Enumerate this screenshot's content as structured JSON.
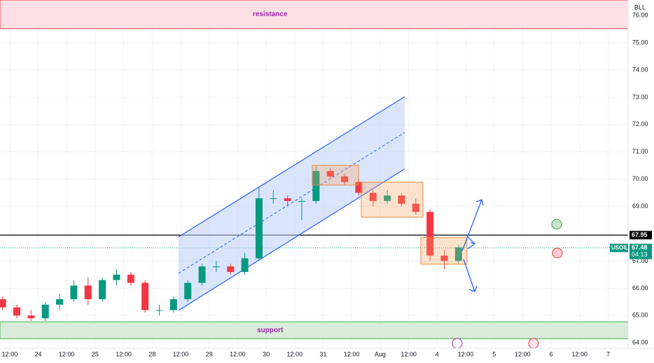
{
  "chart_data": {
    "type": "candlestick",
    "x": [
      -0.25,
      0.25,
      0.75,
      1.25,
      1.75,
      2.25,
      2.75,
      3.25,
      3.75,
      4.25,
      4.75,
      5.25,
      5.75,
      6.25,
      6.75,
      7.25,
      7.75,
      8.25,
      8.75,
      9.25,
      9.75,
      10.25,
      10.75,
      11.25,
      11.75,
      12.25,
      12.75,
      13.25,
      13.75,
      14.25,
      14.75,
      15.25,
      15.75
    ],
    "open": [
      65.6,
      65.3,
      65.0,
      64.9,
      65.4,
      65.6,
      66.1,
      65.6,
      66.3,
      66.5,
      66.2,
      65.2,
      65.2,
      65.6,
      66.2,
      66.8,
      66.8,
      66.6,
      67.1,
      69.3,
      69.3,
      69.2,
      69.2,
      70.3,
      70.1,
      69.9,
      69.5,
      69.2,
      69.4,
      69.1,
      68.8,
      67.2,
      67.0
    ],
    "high": [
      65.7,
      65.4,
      65.2,
      65.5,
      65.8,
      66.3,
      66.4,
      66.4,
      66.7,
      66.6,
      66.3,
      65.4,
      65.7,
      66.3,
      66.9,
      67.0,
      66.9,
      67.3,
      69.7,
      69.6,
      69.4,
      69.3,
      70.5,
      70.4,
      70.2,
      70.0,
      69.6,
      69.6,
      69.5,
      69.3,
      68.9,
      67.4,
      67.6
    ],
    "low": [
      65.2,
      64.9,
      64.8,
      64.8,
      65.2,
      65.5,
      65.4,
      65.5,
      66.1,
      66.1,
      65.1,
      65.0,
      65.1,
      65.5,
      66.1,
      66.6,
      66.5,
      66.5,
      67.0,
      69.1,
      69.0,
      68.5,
      69.1,
      70.0,
      69.8,
      69.4,
      69.0,
      69.1,
      69.0,
      68.7,
      67.0,
      66.7,
      66.9
    ],
    "close": [
      65.3,
      65.0,
      64.9,
      65.4,
      65.6,
      66.1,
      65.6,
      66.3,
      66.5,
      66.2,
      65.2,
      65.2,
      65.6,
      66.2,
      66.8,
      66.8,
      66.6,
      67.1,
      69.3,
      69.3,
      69.2,
      69.2,
      70.3,
      70.1,
      69.9,
      69.5,
      69.2,
      69.4,
      69.1,
      68.8,
      67.2,
      67.0,
      67.5
    ],
    "up_color": "#089981",
    "down_color": "#f23645",
    "xlim": [
      -0.34,
      21.7
    ],
    "xticks": [
      {
        "value": 0,
        "label": "12:00"
      },
      {
        "value": 1,
        "label": "24"
      },
      {
        "value": 2,
        "label": "12:00"
      },
      {
        "value": 3,
        "label": "25"
      },
      {
        "value": 4,
        "label": "12:00"
      },
      {
        "value": 5,
        "label": "28"
      },
      {
        "value": 6,
        "label": "12:00"
      },
      {
        "value": 7,
        "label": "29"
      },
      {
        "value": 8,
        "label": "12:00"
      },
      {
        "value": 9,
        "label": "30"
      },
      {
        "value": 10,
        "label": "12:00"
      },
      {
        "value": 11,
        "label": "31"
      },
      {
        "value": 12,
        "label": "12:00"
      },
      {
        "value": 13,
        "label": "Aug"
      },
      {
        "value": 14,
        "label": "12:00"
      },
      {
        "value": 15,
        "label": "4"
      },
      {
        "value": 16,
        "label": "12:00"
      },
      {
        "value": 17,
        "label": "5"
      },
      {
        "value": 18,
        "label": "12:00"
      },
      {
        "value": 19,
        "label": "6"
      },
      {
        "value": 20,
        "label": "12:00"
      },
      {
        "value": 21,
        "label": "7"
      }
    ],
    "ylim": [
      63.8,
      76.57
    ],
    "yticks": [
      {
        "value": 64,
        "label": "64.00"
      },
      {
        "value": 65,
        "label": "65.00"
      },
      {
        "value": 66,
        "label": "66.00"
      },
      {
        "value": 67,
        "label": "67.00"
      },
      {
        "value": 68,
        "label": "68.00"
      },
      {
        "value": 69,
        "label": "69.00"
      },
      {
        "value": 70,
        "label": "70.00"
      },
      {
        "value": 71,
        "label": "71.00"
      },
      {
        "value": 72,
        "label": "72.00"
      },
      {
        "value": 73,
        "label": "73.00"
      },
      {
        "value": 74,
        "label": "74.00"
      },
      {
        "value": 75,
        "label": "75.00"
      },
      {
        "value": 76,
        "label": "76.00"
      }
    ],
    "grid": true,
    "currency": "BLL",
    "level": {
      "value": 67.95,
      "label": "67.95"
    },
    "price": {
      "symbol": "USOIL",
      "value": 67.48,
      "label": "67.48",
      "countdown": "04:13"
    },
    "zones": [
      {
        "label": "resistance",
        "top": 76.57,
        "bottom": 75.52,
        "fill": "#fde0e4",
        "edge": "#f23645",
        "text": "#9c27b0"
      },
      {
        "label": "support",
        "top": 64.77,
        "bottom": 64.15,
        "fill": "#d8ecd9",
        "edge": "#4caf50",
        "text": "#9c27b0"
      }
    ]
  }
}
